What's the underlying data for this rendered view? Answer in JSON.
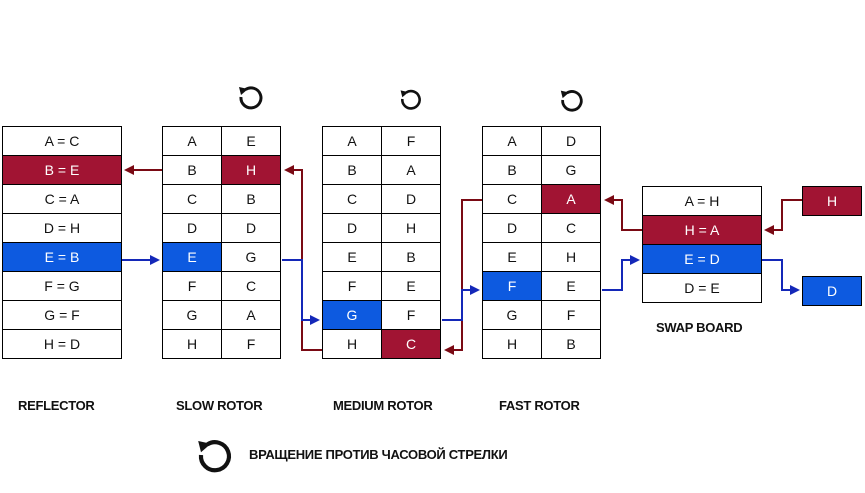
{
  "reflector": {
    "caption": "REFLECTOR",
    "rows": [
      "A = C",
      "B = E",
      "C = A",
      "D = H",
      "E = B",
      "F = G",
      "G = F",
      "H = D"
    ]
  },
  "slow_rotor": {
    "caption": "SLOW ROTOR",
    "rows": [
      [
        "A",
        "E"
      ],
      [
        "B",
        "H"
      ],
      [
        "C",
        "B"
      ],
      [
        "D",
        "D"
      ],
      [
        "E",
        "G"
      ],
      [
        "F",
        "C"
      ],
      [
        "G",
        "A"
      ],
      [
        "H",
        "F"
      ]
    ]
  },
  "medium_rotor": {
    "caption": "MEDIUM ROTOR",
    "rows": [
      [
        "A",
        "F"
      ],
      [
        "B",
        "A"
      ],
      [
        "C",
        "D"
      ],
      [
        "D",
        "H"
      ],
      [
        "E",
        "B"
      ],
      [
        "F",
        "E"
      ],
      [
        "G",
        "F"
      ],
      [
        "H",
        "C"
      ]
    ]
  },
  "fast_rotor": {
    "caption": "FAST ROTOR",
    "rows": [
      [
        "A",
        "D"
      ],
      [
        "B",
        "G"
      ],
      [
        "C",
        "A"
      ],
      [
        "D",
        "C"
      ],
      [
        "E",
        "H"
      ],
      [
        "F",
        "E"
      ],
      [
        "G",
        "F"
      ],
      [
        "H",
        "B"
      ]
    ]
  },
  "swap_board": {
    "caption": "SWAP BOARD",
    "rows": [
      "A = H",
      "H = A",
      "E = D",
      "D = E"
    ]
  },
  "input_letter": "H",
  "output_letter": "D",
  "legend": {
    "label": "ВРАЩЕНИЕ ПРОТИВ ЧАСОВОЙ СТРЕЛКИ",
    "icon": "counterclockwise-rotation-icon"
  },
  "colors": {
    "forward_path": "#a11433",
    "return_path": "#0d5ae0",
    "forward_wire": "#7a0a14",
    "return_wire": "#1428b8"
  }
}
